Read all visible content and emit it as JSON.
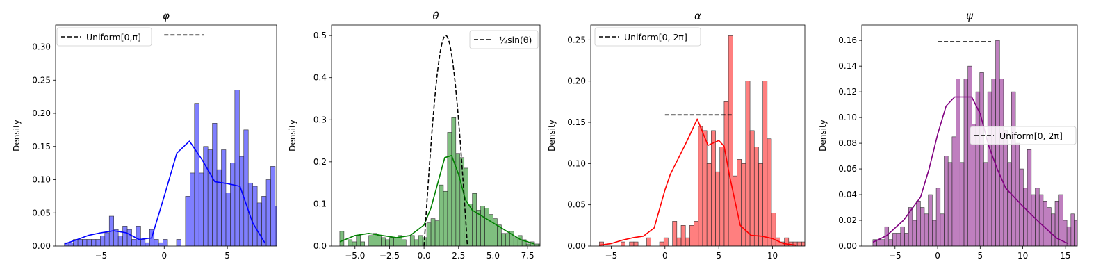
{
  "chart_data": [
    {
      "type": "histogram",
      "title": "φ",
      "title_style": "italic",
      "xlabel": "",
      "ylabel": "Density",
      "xlim": [
        -8.6,
        8.9
      ],
      "ylim": [
        0,
        0.333
      ],
      "xticks": [
        -5,
        0,
        5
      ],
      "xtick_labels": [
        "−5",
        "0",
        "5"
      ],
      "yticks": [
        0,
        0.05,
        0.1,
        0.15,
        0.2,
        0.25,
        0.3
      ],
      "ytick_labels": [
        "0.00",
        "0.05",
        "0.10",
        "0.15",
        "0.20",
        "0.25",
        "0.30"
      ],
      "grid": false,
      "color": "#0000ff",
      "legend": {
        "position": "top-left",
        "entries": [
          {
            "label": "Uniform[0,π]",
            "style": "dashed",
            "color": "#000000"
          }
        ]
      },
      "bins": {
        "start": -7.9,
        "width": 0.355,
        "density": [
          0.005,
          0.005,
          0.01,
          0.01,
          0.01,
          0.01,
          0.01,
          0.01,
          0.015,
          0.02,
          0.045,
          0.025,
          0.015,
          0.03,
          0.025,
          0.01,
          0.03,
          0.01,
          0.005,
          0.025,
          0.01,
          0.005,
          0.01,
          0.0,
          0.0,
          0.01,
          0.0,
          0.075,
          0.11,
          0.215,
          0.11,
          0.15,
          0.145,
          0.185,
          0.115,
          0.145,
          0.08,
          0.125,
          0.235,
          0.135,
          0.175,
          0.095,
          0.09,
          0.065,
          0.075,
          0.1,
          0.12,
          0.06,
          0.065,
          0.095,
          0.065,
          0.03,
          0.02,
          0.015,
          0.02,
          0.005
        ]
      },
      "kde": {
        "x": [
          -7.9,
          -7,
          -6,
          -5,
          -4,
          -3,
          -2,
          -1,
          0,
          1,
          2,
          3,
          4,
          5,
          6,
          7,
          8
        ],
        "y": [
          0.003,
          0.009,
          0.016,
          0.02,
          0.023,
          0.02,
          0.01,
          0.012,
          0.075,
          0.14,
          0.158,
          0.13,
          0.097,
          0.094,
          0.09,
          0.035,
          0.004
        ]
      },
      "reference_line": {
        "label": "Uniform[0,π]",
        "x_range": [
          0,
          3.1416
        ],
        "y": 0.318
      }
    },
    {
      "type": "histogram",
      "title": "θ",
      "title_style": "italic",
      "xlabel": "",
      "ylabel": "Density",
      "xlim": [
        -6.7,
        8.4
      ],
      "ylim": [
        0,
        0.525
      ],
      "xticks": [
        -5,
        -2.5,
        0,
        2.5,
        5,
        7.5
      ],
      "xtick_labels": [
        "−5.0",
        "−2.5",
        "0.0",
        "2.5",
        "5.0",
        "7.5"
      ],
      "yticks": [
        0,
        0.1,
        0.2,
        0.3,
        0.4,
        0.5
      ],
      "ytick_labels": [
        "0.0",
        "0.1",
        "0.2",
        "0.3",
        "0.4",
        "0.5"
      ],
      "grid": false,
      "color": "#008000",
      "legend": {
        "position": "top-right",
        "entries": [
          {
            "label": "½sin(θ)",
            "style": "dashed",
            "color": "#000000"
          }
        ]
      },
      "bins": {
        "start": -6.1,
        "width": 0.3,
        "density": [
          0.035,
          0.0,
          0.015,
          0.01,
          0.025,
          0.01,
          0.0,
          0.025,
          0.03,
          0.025,
          0.02,
          0.015,
          0.02,
          0.02,
          0.025,
          0.015,
          0.0,
          0.025,
          0.015,
          0.025,
          0.02,
          0.055,
          0.065,
          0.06,
          0.145,
          0.13,
          0.27,
          0.305,
          0.22,
          0.21,
          0.185,
          0.1,
          0.125,
          0.085,
          0.095,
          0.09,
          0.075,
          0.065,
          0.05,
          0.03,
          0.03,
          0.035,
          0.02,
          0.025,
          0.015,
          0.005,
          0.01,
          0.005,
          0.005
        ]
      },
      "kde": {
        "x": [
          -6.1,
          -5,
          -4,
          -3,
          -2,
          -1,
          0,
          0.5,
          1,
          1.5,
          2,
          2.5,
          3,
          3.5,
          4,
          5,
          6,
          7,
          8
        ],
        "y": [
          0.01,
          0.025,
          0.03,
          0.025,
          0.02,
          0.025,
          0.05,
          0.09,
          0.15,
          0.21,
          0.215,
          0.17,
          0.11,
          0.085,
          0.075,
          0.055,
          0.035,
          0.015,
          0.005
        ]
      },
      "reference_curve": {
        "label": "½sin(θ)",
        "function": "0.5*sin(x)",
        "x_range": [
          0,
          3.1416
        ]
      }
    },
    {
      "type": "histogram",
      "title": "α",
      "title_style": "italic",
      "xlabel": "",
      "ylabel": "Density",
      "xlim": [
        -6.9,
        13.0
      ],
      "ylim": [
        0,
        0.268
      ],
      "xticks": [
        -5,
        0,
        5,
        10
      ],
      "xtick_labels": [
        "−5",
        "0",
        "5",
        "10"
      ],
      "yticks": [
        0,
        0.05,
        0.1,
        0.15,
        0.2,
        0.25
      ],
      "ytick_labels": [
        "0.00",
        "0.05",
        "0.10",
        "0.15",
        "0.20",
        "0.25"
      ],
      "grid": false,
      "color": "#ff0000",
      "legend": {
        "position": "top-left",
        "entries": [
          {
            "label": "Uniform[0, 2π]",
            "style": "dashed",
            "color": "#000000"
          }
        ]
      },
      "bins": {
        "start": -6.1,
        "width": 0.4,
        "density": [
          0.005,
          0.0,
          0.0,
          0.0,
          0.0,
          0.005,
          0.0,
          0.005,
          0.005,
          0.0,
          0.0,
          0.01,
          0.0,
          0.0,
          0.005,
          0.01,
          0.0,
          0.03,
          0.01,
          0.025,
          0.01,
          0.025,
          0.03,
          0.145,
          0.14,
          0.1,
          0.14,
          0.09,
          0.12,
          0.175,
          0.255,
          0.085,
          0.105,
          0.1,
          0.2,
          0.14,
          0.12,
          0.1,
          0.2,
          0.13,
          0.04,
          0.01,
          0.005,
          0.01,
          0.005,
          0.005,
          0.005,
          0.005,
          0.0,
          0.03,
          0.005,
          0.0,
          0.0,
          0.0,
          0.0,
          0.005,
          0.0,
          0.0,
          0.0,
          0.0,
          0.005
        ]
      },
      "kde": {
        "x": [
          -6.1,
          -5,
          -4,
          -3,
          -2,
          -1,
          0,
          0.5,
          1,
          2,
          3,
          4,
          5,
          5.5,
          6,
          7,
          8,
          9,
          10,
          11,
          12.2
        ],
        "y": [
          0.001,
          0.003,
          0.007,
          0.01,
          0.012,
          0.022,
          0.068,
          0.087,
          0.1,
          0.126,
          0.154,
          0.122,
          0.128,
          0.121,
          0.085,
          0.025,
          0.013,
          0.012,
          0.009,
          0.003,
          0.001
        ]
      },
      "reference_line": {
        "label": "Uniform[0, 2π]",
        "x_range": [
          0,
          6.2832
        ],
        "y": 0.159
      }
    },
    {
      "type": "histogram",
      "title": "ψ",
      "title_style": "italic",
      "xlabel": "",
      "ylabel": "Density",
      "xlim": [
        -8.9,
        16.4
      ],
      "ylim": [
        0,
        0.172
      ],
      "xticks": [
        -5,
        0,
        5,
        10,
        15
      ],
      "xtick_labels": [
        "−5",
        "0",
        "5",
        "10",
        "15"
      ],
      "yticks": [
        0,
        0.02,
        0.04,
        0.06,
        0.08,
        0.1,
        0.12,
        0.14,
        0.16
      ],
      "ytick_labels": [
        "0.00",
        "0.02",
        "0.04",
        "0.06",
        "0.08",
        "0.10",
        "0.12",
        "0.14",
        "0.16"
      ],
      "grid": false,
      "color": "#800080",
      "legend": {
        "position": "center-right",
        "entries": [
          {
            "label": "Uniform[0, 2π]",
            "style": "dashed",
            "color": "#000000"
          }
        ]
      },
      "bins": {
        "start": -7.6,
        "width": 0.465,
        "density": [
          0.005,
          0.005,
          0.005,
          0.015,
          0.005,
          0.01,
          0.01,
          0.015,
          0.01,
          0.03,
          0.02,
          0.035,
          0.03,
          0.025,
          0.04,
          0.02,
          0.045,
          0.025,
          0.07,
          0.065,
          0.085,
          0.13,
          0.065,
          0.13,
          0.14,
          0.095,
          0.12,
          0.135,
          0.065,
          0.12,
          0.13,
          0.16,
          0.13,
          0.09,
          0.065,
          0.12,
          0.08,
          0.06,
          0.045,
          0.075,
          0.04,
          0.045,
          0.04,
          0.035,
          0.03,
          0.025,
          0.035,
          0.04,
          0.02,
          0.015,
          0.025,
          0.02,
          0.03,
          0.015,
          0.015,
          0.01,
          0.01,
          0.005,
          0.005,
          0.005,
          0.01,
          0.005,
          0.01
        ]
      },
      "kde": {
        "x": [
          -7.6,
          -6,
          -4,
          -2,
          -1,
          0,
          1,
          2,
          3,
          4,
          5,
          6,
          7,
          8,
          10,
          12,
          14,
          15.3
        ],
        "y": [
          0.003,
          0.008,
          0.02,
          0.038,
          0.06,
          0.087,
          0.109,
          0.116,
          0.116,
          0.116,
          0.103,
          0.078,
          0.06,
          0.045,
          0.031,
          0.018,
          0.006,
          0.002
        ]
      },
      "reference_line": {
        "label": "Uniform[0, 2π]",
        "x_range": [
          0,
          6.2832
        ],
        "y": 0.159
      }
    }
  ]
}
